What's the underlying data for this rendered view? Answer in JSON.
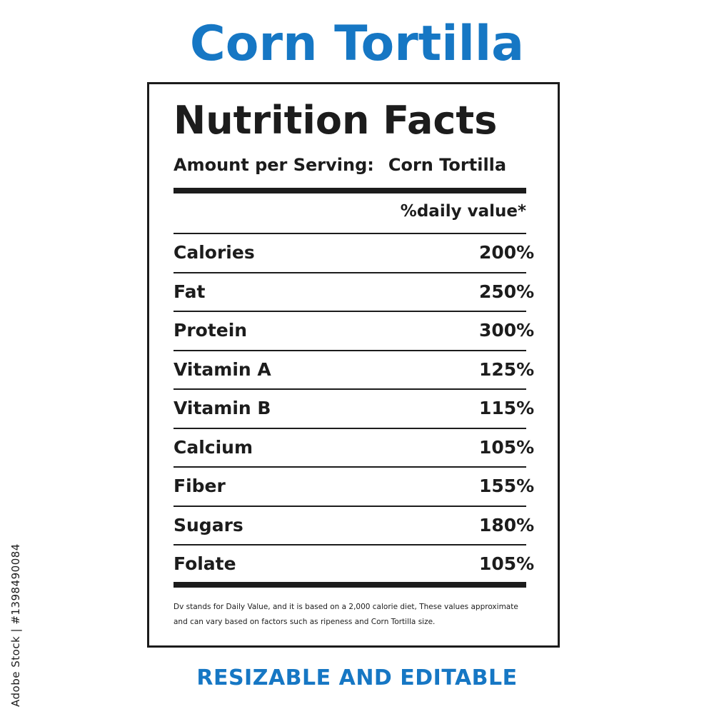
{
  "title": "Corn Tortilla",
  "label": {
    "heading": "Nutrition Facts",
    "serving_label": "Amount per Serving:",
    "serving_value": "Corn Tortilla",
    "dv_header": "%daily value*",
    "rows": [
      {
        "nutrient": "Calories",
        "value": "200%"
      },
      {
        "nutrient": "Fat",
        "value": "250%"
      },
      {
        "nutrient": "Protein",
        "value": "300%"
      },
      {
        "nutrient": "Vitamin A",
        "value": "125%"
      },
      {
        "nutrient": "Vitamin B",
        "value": "115%"
      },
      {
        "nutrient": "Calcium",
        "value": "105%"
      },
      {
        "nutrient": "Fiber",
        "value": "155%"
      },
      {
        "nutrient": "Sugars",
        "value": "180%"
      },
      {
        "nutrient": "Folate",
        "value": "105%"
      }
    ],
    "footnote_line1": "Dv stands for Daily Value, and it is based on a 2,000 calorie diet, These values approximate",
    "footnote_line2": "and can vary based on factors such as ripeness and Corn Tortilla size."
  },
  "bottom_text": "RESIZABLE AND EDITABLE",
  "side_watermark": "Adobe Stock | #1398490084",
  "colors": {
    "accent": "#1677c4",
    "text": "#1c1c1c",
    "background": "#ffffff"
  }
}
